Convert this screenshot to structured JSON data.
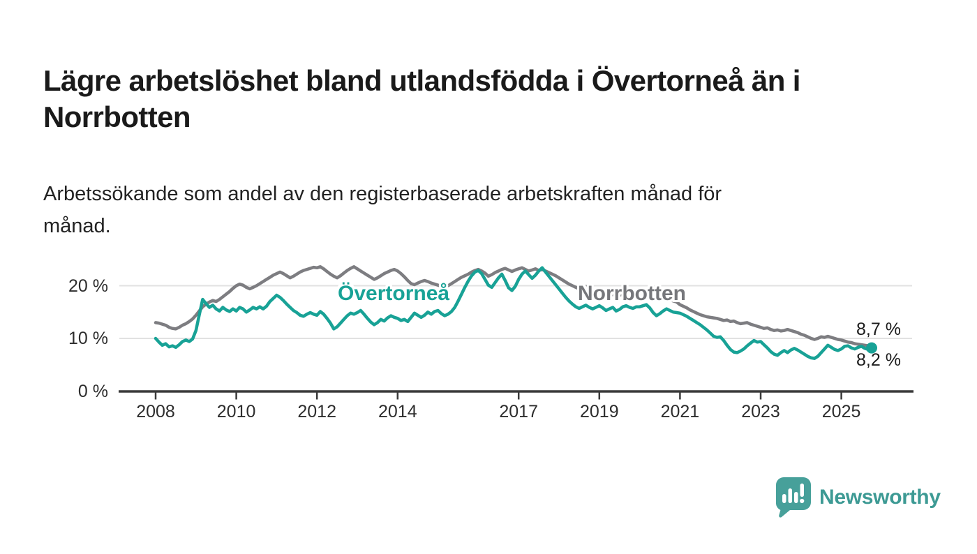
{
  "header": {
    "title": "Lägre arbetslöshet bland utlandsfödda i Övertorneå än i\nNorrbotten",
    "subtitle": "Arbetssökande som andel av den registerbaserade arbetskraften månad för\nmånad."
  },
  "colors": {
    "overtornea_line": "#18a296",
    "norrbotten_line": "#7d7d81",
    "axis": "#3a3a3a",
    "gridline": "#e1e1e1",
    "brand_teal": "#3d9a94",
    "brand_icon_bg": "#47a09a"
  },
  "chart_data": {
    "type": "line",
    "x_unit": "month",
    "x_start": "2008-01",
    "x_end": "2025-10",
    "ylim": [
      0,
      25
    ],
    "grid": "horizontal",
    "y_axis": {
      "ticks": [
        {
          "value": 20,
          "label": "20 %"
        },
        {
          "value": 10,
          "label": "10 %"
        },
        {
          "value": 0,
          "label": "0 %"
        }
      ]
    },
    "x_axis": {
      "ticks": [
        {
          "year": 2008,
          "label": "2008"
        },
        {
          "year": 2010,
          "label": "2010"
        },
        {
          "year": 2012,
          "label": "2012"
        },
        {
          "year": 2014,
          "label": "2014"
        },
        {
          "year": 2017,
          "label": "2017"
        },
        {
          "year": 2019,
          "label": "2019"
        },
        {
          "year": 2021,
          "label": "2021"
        },
        {
          "year": 2023,
          "label": "2023"
        },
        {
          "year": 2025,
          "label": "2025"
        }
      ]
    },
    "series": [
      {
        "name": "Norrbotten",
        "color": "#7d7d81",
        "end_label": "8,7 %",
        "end_value": 8.7,
        "marker_end": false,
        "values": [
          13.0,
          12.9,
          12.7,
          12.5,
          12.1,
          11.9,
          11.8,
          12.1,
          12.5,
          12.8,
          13.2,
          13.7,
          14.4,
          15.2,
          16.0,
          16.5,
          16.9,
          17.2,
          17.0,
          17.4,
          17.9,
          18.4,
          18.9,
          19.5,
          20.0,
          20.3,
          20.1,
          19.7,
          19.4,
          19.7,
          20.0,
          20.4,
          20.8,
          21.2,
          21.6,
          22.0,
          22.3,
          22.6,
          22.3,
          21.9,
          21.5,
          21.8,
          22.2,
          22.6,
          22.9,
          23.1,
          23.3,
          23.5,
          23.4,
          23.6,
          23.2,
          22.7,
          22.2,
          21.8,
          21.5,
          21.9,
          22.4,
          22.9,
          23.3,
          23.6,
          23.2,
          22.8,
          22.4,
          22.0,
          21.6,
          21.2,
          21.5,
          21.9,
          22.3,
          22.6,
          22.9,
          23.1,
          22.8,
          22.3,
          21.7,
          21.0,
          20.4,
          20.2,
          20.5,
          20.8,
          21.0,
          20.8,
          20.5,
          20.3,
          20.1,
          19.9,
          20.2,
          20.0,
          20.4,
          20.8,
          21.2,
          21.6,
          21.9,
          22.2,
          22.6,
          22.9,
          23.1,
          22.8,
          22.4,
          21.8,
          22.1,
          22.5,
          22.8,
          23.1,
          23.3,
          23.0,
          22.7,
          23.0,
          23.2,
          23.4,
          23.1,
          22.8,
          23.0,
          23.2,
          22.9,
          23.1,
          22.8,
          22.5,
          22.2,
          21.9,
          21.5,
          21.1,
          20.7,
          20.3,
          20.0,
          19.7,
          19.4,
          19.7,
          19.9,
          19.6,
          19.3,
          19.1,
          18.9,
          18.7,
          18.9,
          18.6,
          18.3,
          18.5,
          18.2,
          18.4,
          18.7,
          18.5,
          18.3,
          18.6,
          18.4,
          18.2,
          18.5,
          18.9,
          18.7,
          18.4,
          18.1,
          17.8,
          17.5,
          17.3,
          17.1,
          16.9,
          16.4,
          16.1,
          15.8,
          15.4,
          15.1,
          14.8,
          14.5,
          14.3,
          14.1,
          14.0,
          13.9,
          13.8,
          13.6,
          13.4,
          13.5,
          13.2,
          13.3,
          13.0,
          12.8,
          12.9,
          13.0,
          12.7,
          12.5,
          12.3,
          12.1,
          11.9,
          12.0,
          11.7,
          11.5,
          11.6,
          11.4,
          11.5,
          11.7,
          11.5,
          11.3,
          11.1,
          10.8,
          10.6,
          10.3,
          10.0,
          9.8,
          10.0,
          10.3,
          10.2,
          10.4,
          10.2,
          10.0,
          9.8,
          9.7,
          9.5,
          9.3,
          9.2,
          9.0,
          8.9,
          8.8,
          8.7,
          8.6,
          8.7
        ]
      },
      {
        "name": "Övertorneå",
        "color": "#18a296",
        "end_label": "8,2 %",
        "end_value": 8.2,
        "marker_end": true,
        "values": [
          10.0,
          9.3,
          8.7,
          9.0,
          8.4,
          8.6,
          8.3,
          8.8,
          9.4,
          9.7,
          9.4,
          9.9,
          11.5,
          14.5,
          17.4,
          16.6,
          15.9,
          16.3,
          15.6,
          15.2,
          15.9,
          15.4,
          15.1,
          15.6,
          15.2,
          15.9,
          15.6,
          15.0,
          15.4,
          15.9,
          15.6,
          16.0,
          15.6,
          16.1,
          17.0,
          17.6,
          18.2,
          17.8,
          17.2,
          16.5,
          15.9,
          15.3,
          14.9,
          14.4,
          14.2,
          14.6,
          14.9,
          14.6,
          14.4,
          15.1,
          14.6,
          13.8,
          12.9,
          11.8,
          12.2,
          12.9,
          13.6,
          14.3,
          14.8,
          14.6,
          14.9,
          15.3,
          14.6,
          13.8,
          13.1,
          12.6,
          13.0,
          13.6,
          13.3,
          13.9,
          14.3,
          14.0,
          13.8,
          13.4,
          13.6,
          13.2,
          14.0,
          14.8,
          14.4,
          14.0,
          14.4,
          15.0,
          14.6,
          15.1,
          15.3,
          14.7,
          14.3,
          14.6,
          15.1,
          15.9,
          17.1,
          18.4,
          19.7,
          20.9,
          21.9,
          22.6,
          22.9,
          22.3,
          21.2,
          20.1,
          19.7,
          20.6,
          21.5,
          22.2,
          21.0,
          19.6,
          19.1,
          19.9,
          21.2,
          22.2,
          22.8,
          22.1,
          21.4,
          22.0,
          22.8,
          23.4,
          22.6,
          21.8,
          21.0,
          20.2,
          19.4,
          18.6,
          17.8,
          17.1,
          16.5,
          16.0,
          15.7,
          16.0,
          16.3,
          15.9,
          15.6,
          15.9,
          16.2,
          15.8,
          15.3,
          15.6,
          15.9,
          15.2,
          15.5,
          16.0,
          16.2,
          15.9,
          15.7,
          16.0,
          16.0,
          16.2,
          16.4,
          15.8,
          14.9,
          14.3,
          14.7,
          15.2,
          15.6,
          15.3,
          15.0,
          14.9,
          14.8,
          14.5,
          14.2,
          13.8,
          13.4,
          13.0,
          12.6,
          12.1,
          11.6,
          11.0,
          10.4,
          10.2,
          10.3,
          9.6,
          8.7,
          7.9,
          7.4,
          7.3,
          7.6,
          8.0,
          8.6,
          9.1,
          9.6,
          9.3,
          9.4,
          8.8,
          8.2,
          7.5,
          7.0,
          6.8,
          7.3,
          7.7,
          7.3,
          7.8,
          8.1,
          7.8,
          7.4,
          7.0,
          6.6,
          6.3,
          6.2,
          6.6,
          7.3,
          8.0,
          8.7,
          8.3,
          7.9,
          7.7,
          8.0,
          8.5,
          8.6,
          8.2,
          8.0,
          8.3,
          8.5,
          8.1,
          7.9,
          8.2
        ]
      }
    ]
  },
  "branding": {
    "logo_text": "Newsworthy",
    "logo_icon": "speech-bubble-bar-chart-icon"
  }
}
